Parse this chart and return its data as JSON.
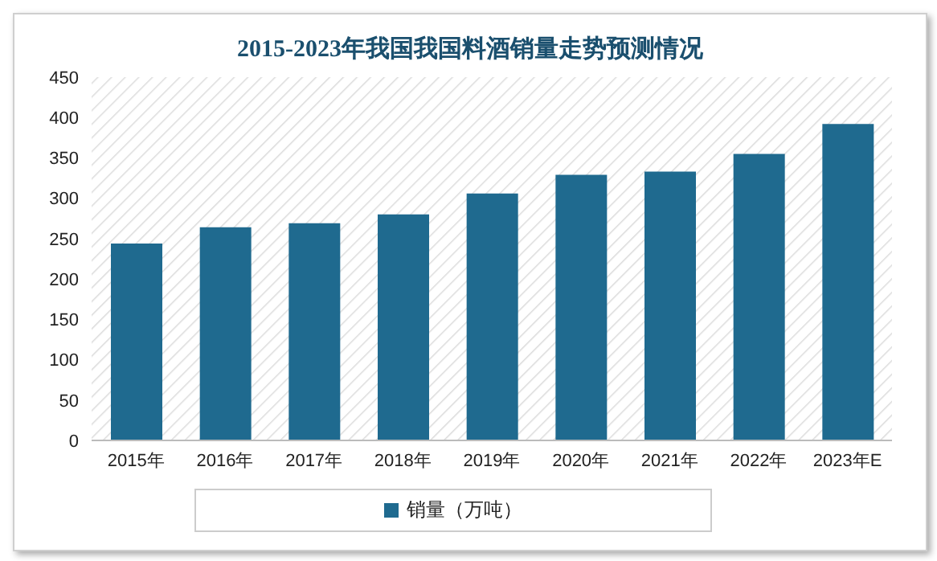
{
  "chart_data": {
    "type": "bar",
    "title": "2015-2023年我国我国料酒销量走势预测情况",
    "categories": [
      "2015年",
      "2016年",
      "2017年",
      "2018年",
      "2019年",
      "2020年",
      "2021年",
      "2022年",
      "2023年E"
    ],
    "series": [
      {
        "name": "销量（万吨）",
        "color": "#1f6a8f",
        "values": [
          244,
          264,
          269,
          280,
          306,
          329,
          333,
          355,
          392
        ]
      }
    ],
    "ylim": [
      0,
      450
    ],
    "yticks": [
      0,
      50,
      100,
      150,
      200,
      250,
      300,
      350,
      400,
      450
    ],
    "grid": false,
    "legend": "bottom"
  }
}
